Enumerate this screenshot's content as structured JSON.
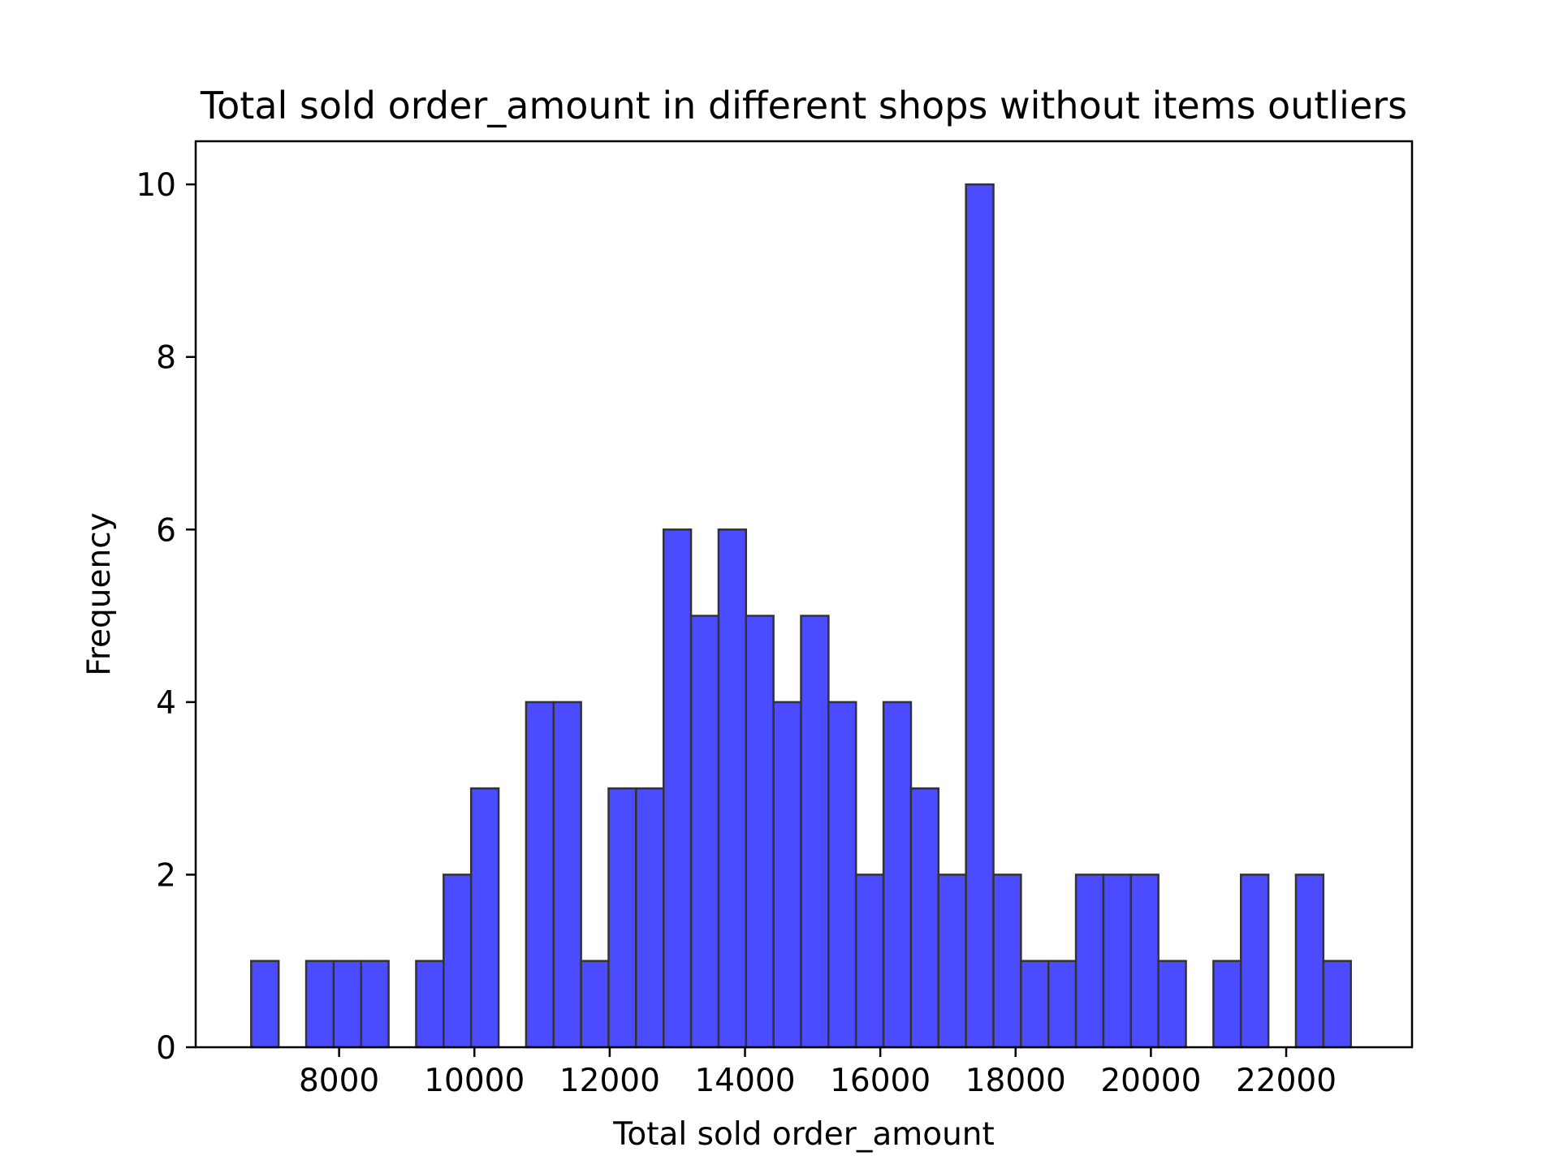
{
  "chart_data": {
    "type": "bar",
    "title": "Total sold order_amount in different shops without items outliers",
    "xlabel": "Total sold order_amount",
    "ylabel": "Frequency",
    "xlim": [
      5880,
      23860
    ],
    "ylim": [
      0,
      10.5
    ],
    "x_ticks": [
      8000,
      10000,
      12000,
      14000,
      16000,
      18000,
      20000,
      22000
    ],
    "x_tick_labels": [
      "8000",
      "10000",
      "12000",
      "14000",
      "16000",
      "18000",
      "20000",
      "22000"
    ],
    "y_ticks": [
      0,
      2,
      4,
      6,
      8,
      10
    ],
    "y_tick_labels": [
      "0",
      "2",
      "4",
      "6",
      "8",
      "10"
    ],
    "bin_start": 6700,
    "bin_width": 406.4,
    "bins": 40,
    "values": [
      1,
      0,
      1,
      1,
      1,
      0,
      1,
      2,
      3,
      0,
      4,
      4,
      1,
      3,
      3,
      6,
      5,
      6,
      5,
      4,
      5,
      4,
      2,
      4,
      3,
      2,
      10,
      2,
      1,
      1,
      2,
      2,
      2,
      1,
      0,
      1,
      2,
      0,
      2,
      1
    ],
    "bar_color": "#4b4bff",
    "edge_color": "#333333",
    "grid": false,
    "legend": "none"
  }
}
